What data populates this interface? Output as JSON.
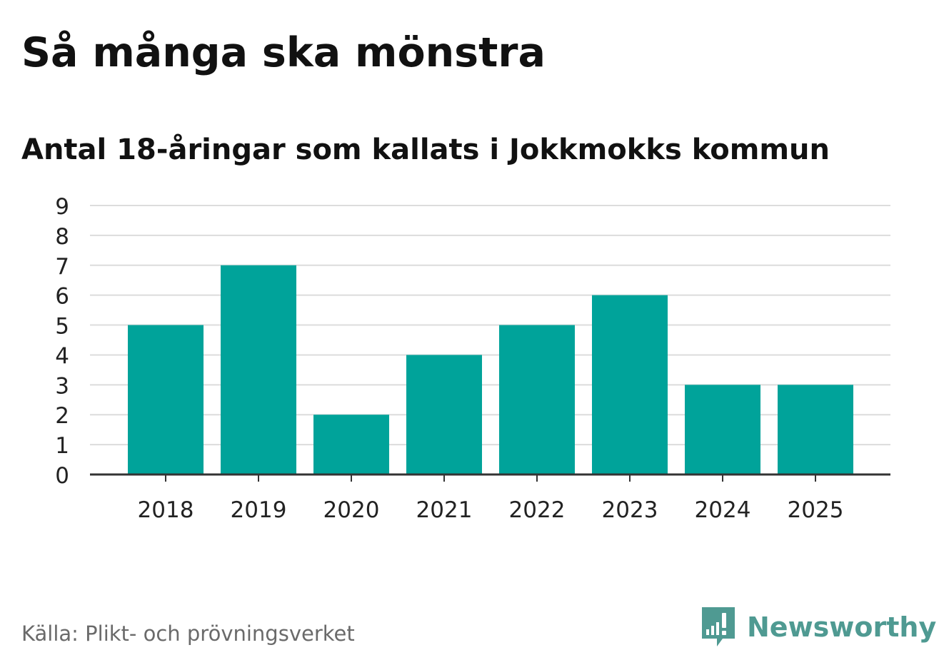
{
  "title": "Så många ska mönstra",
  "subtitle": "Antal 18-åringar som kallats i Jokkmokks kommun",
  "source": "Källa: Plikt- och prövningsverket",
  "brand": {
    "name": "Newsworthy",
    "icon": "newsworthy-logo-icon",
    "color": "#4f9a92"
  },
  "colors": {
    "bar": "#00a39a",
    "grid": "#dcdcdc",
    "axis": "#333333",
    "text": "#111111"
  },
  "chart_data": {
    "type": "bar",
    "title": "Så många ska mönstra",
    "subtitle": "Antal 18-åringar som kallats i Jokkmokks kommun",
    "xlabel": "",
    "ylabel": "",
    "categories": [
      "2018",
      "2019",
      "2020",
      "2021",
      "2022",
      "2023",
      "2024",
      "2025"
    ],
    "values": [
      5,
      7,
      2,
      4,
      5,
      6,
      3,
      3
    ],
    "ylim": [
      0,
      9
    ],
    "yticks": [
      "0",
      "1",
      "2",
      "3",
      "4",
      "5",
      "6",
      "7",
      "8",
      "9"
    ],
    "grid": true,
    "legend": "none"
  }
}
